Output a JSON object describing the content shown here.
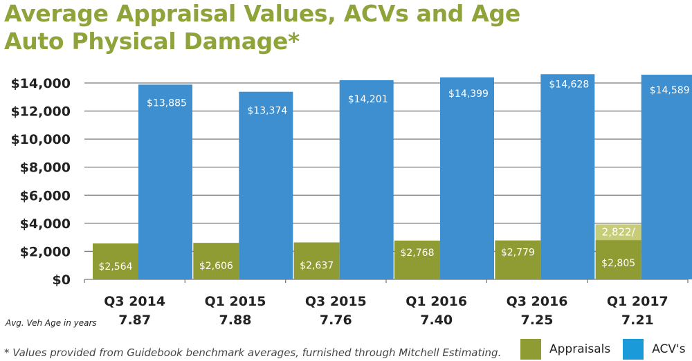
{
  "chart_data": {
    "type": "bar",
    "title": "Average Appraisal Values, ACVs and Age",
    "subtitle": "Auto Physical Damage*",
    "categories": [
      "Q3 2014",
      "Q1 2015",
      "Q3 2015",
      "Q1 2016",
      "Q3 2016",
      "Q1 2017"
    ],
    "avg_veh_age": [
      "7.87",
      "7.88",
      "7.76",
      "7.40",
      "7.25",
      "7.21"
    ],
    "avg_veh_age_label": "Avg. Veh Age in years",
    "series": [
      {
        "name": "Appraisals",
        "color": "#8e9c33",
        "values": [
          2564,
          2606,
          2637,
          2768,
          2779,
          2805
        ],
        "labels": [
          "$2,564",
          "$2,606",
          "$2,637",
          "$2,768",
          "$2,779",
          "$2,805"
        ]
      },
      {
        "name": "ACV's",
        "color": "#3d8fd0",
        "values": [
          13885,
          13374,
          14201,
          14399,
          14628,
          14589
        ],
        "labels": [
          "$13,885",
          "$13,374",
          "$14,201",
          "$14,399",
          "$14,628",
          "$14,589"
        ]
      }
    ],
    "annotation": {
      "category": "Q1 2017",
      "series": "Appraisals",
      "value": 2822,
      "text": "2,822/",
      "color": "#c6cc78"
    },
    "ylim": [
      0,
      14000
    ],
    "yticks": [
      0,
      2000,
      4000,
      6000,
      8000,
      10000,
      12000,
      14000
    ],
    "ytick_labels": [
      "$0",
      "$2,000",
      "$4,000",
      "$6,000",
      "$8,000",
      "$10,000",
      "$12,000",
      "$14,000"
    ],
    "grid": true,
    "legend": "bottom-right",
    "xlabel": "",
    "ylabel": ""
  },
  "footnote": "* Values provided from Guidebook benchmark averages, furnished through Mitchell Estimating."
}
